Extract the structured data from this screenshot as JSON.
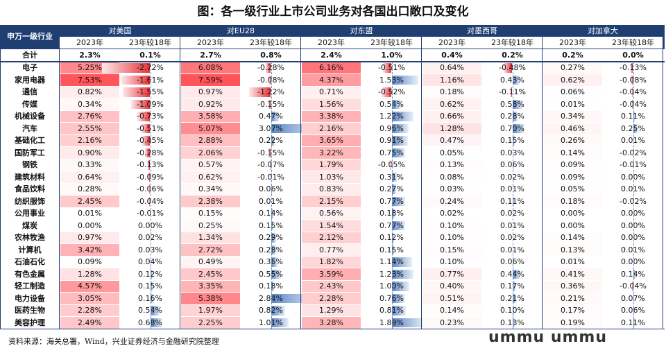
{
  "title": "图：各一级行业上市公司业务对各国出口敞口及变化",
  "footer": "资料来源：海关总署，Wind，兴业证券经济与金融研究院整理",
  "watermark": "ummu ummu",
  "colors": {
    "header": "#1f3f73",
    "positive_bar": "#5d86c4",
    "negative_bar": "#e8333a"
  },
  "chart_data": {
    "type": "table",
    "corner_label": "申万一级行业",
    "groups": [
      "对美国",
      "对EU28",
      "对东盟",
      "对墨西哥",
      "对加拿大"
    ],
    "subheaders": [
      "2023年",
      "23年较18年"
    ],
    "subheaders_us": [
      "2023年",
      "23年较18年"
    ],
    "total": {
      "label": "合计",
      "values": [
        [
          "2.3%",
          "0.1%"
        ],
        [
          "2.7%",
          "0.8%"
        ],
        [
          "2.4%",
          "1.0%"
        ],
        [
          "0.4%",
          "0.2%"
        ],
        [
          "0.2%",
          "0.0%"
        ]
      ]
    },
    "rows": [
      {
        "label": "电子",
        "values": [
          [
            5.25,
            -2.72
          ],
          [
            6.08,
            -0.28
          ],
          [
            6.16,
            -0.51
          ],
          [
            0.64,
            -0.48
          ],
          [
            0.27,
            -0.13
          ]
        ]
      },
      {
        "label": "家用电器",
        "values": [
          [
            7.53,
            -1.61
          ],
          [
            7.59,
            -0.08
          ],
          [
            4.37,
            1.53
          ],
          [
            1.16,
            0.43
          ],
          [
            0.62,
            -0.08
          ]
        ]
      },
      {
        "label": "通信",
        "values": [
          [
            0.82,
            -1.55
          ],
          [
            0.97,
            -1.22
          ],
          [
            0.71,
            -0.52
          ],
          [
            0.18,
            -0.11
          ],
          [
            0.06,
            -0.04
          ]
        ]
      },
      {
        "label": "传媒",
        "values": [
          [
            0.34,
            -1.09
          ],
          [
            0.92,
            -0.15
          ],
          [
            1.56,
            0.54
          ],
          [
            0.62,
            0.58
          ],
          [
            0.01,
            -0.04
          ]
        ]
      },
      {
        "label": "机械设备",
        "values": [
          [
            2.76,
            -0.73
          ],
          [
            3.58,
            0.47
          ],
          [
            3.38,
            1.22
          ],
          [
            0.66,
            0.28
          ],
          [
            0.34,
            0.11
          ]
        ]
      },
      {
        "label": "汽车",
        "values": [
          [
            2.55,
            -0.51
          ],
          [
            5.07,
            3.07
          ],
          [
            2.16,
            0.96
          ],
          [
            1.28,
            0.7
          ],
          [
            0.46,
            0.25
          ]
        ]
      },
      {
        "label": "基础化工",
        "values": [
          [
            2.16,
            -0.45
          ],
          [
            2.88,
            0.22
          ],
          [
            3.65,
            0.91
          ],
          [
            0.47,
            0.15
          ],
          [
            0.26,
            0.01
          ]
        ]
      },
      {
        "label": "国防军工",
        "values": [
          [
            0.9,
            -0.28
          ],
          [
            2.06,
            -0.15
          ],
          [
            3.22,
            0.75
          ],
          [
            0.05,
            0.03
          ],
          [
            0.14,
            -0.02
          ]
        ]
      },
      {
        "label": "钢铁",
        "values": [
          [
            0.33,
            -0.13
          ],
          [
            0.57,
            -0.07
          ],
          [
            1.79,
            -0.05
          ],
          [
            0.13,
            0.06
          ],
          [
            0.09,
            -0.01
          ]
        ]
      },
      {
        "label": "建筑材料",
        "values": [
          [
            0.64,
            -0.09
          ],
          [
            0.62,
            -0.01
          ],
          [
            1.03,
            0.31
          ],
          [
            0.08,
            0.02
          ],
          [
            0.09,
            0.0
          ]
        ]
      },
      {
        "label": "食品饮料",
        "values": [
          [
            0.28,
            -0.06
          ],
          [
            0.34,
            0.06
          ],
          [
            0.83,
            0.27
          ],
          [
            0.03,
            0.01
          ],
          [
            0.05,
            0.01
          ]
        ]
      },
      {
        "label": "纺织服饰",
        "values": [
          [
            2.45,
            -0.04
          ],
          [
            2.38,
            0.01
          ],
          [
            2.15,
            0.77
          ],
          [
            0.24,
            0.11
          ],
          [
            0.18,
            -0.02
          ]
        ]
      },
      {
        "label": "公用事业",
        "values": [
          [
            0.01,
            -0.01
          ],
          [
            0.15,
            0.14
          ],
          [
            0.56,
            0.18
          ],
          [
            0.02,
            0.02
          ],
          [
            0.0,
            0.0
          ]
        ]
      },
      {
        "label": "煤炭",
        "values": [
          [
            0.0,
            0.0
          ],
          [
            0.25,
            0.15
          ],
          [
            1.54,
            0.77
          ],
          [
            0.1,
            0.01
          ],
          [
            0.0,
            0.0
          ]
        ]
      },
      {
        "label": "农林牧渔",
        "values": [
          [
            0.97,
            0.02
          ],
          [
            1.34,
            0.29
          ],
          [
            2.12,
            0.12
          ],
          [
            0.1,
            0.02
          ],
          [
            0.14,
            0.0
          ]
        ]
      },
      {
        "label": "计算机",
        "values": [
          [
            3.42,
            0.03
          ],
          [
            2.72,
            0.28
          ],
          [
            0.77,
            0.15
          ],
          [
            0.15,
            0.01
          ],
          [
            0.13,
            0.01
          ]
        ]
      },
      {
        "label": "石油石化",
        "values": [
          [
            0.09,
            0.04
          ],
          [
            0.49,
            0.36
          ],
          [
            1.82,
            1.14
          ],
          [
            0.1,
            0.06
          ],
          [
            0.01,
            0.0
          ]
        ]
      },
      {
        "label": "有色金属",
        "values": [
          [
            1.28,
            0.12
          ],
          [
            2.45,
            0.55
          ],
          [
            3.59,
            1.23
          ],
          [
            0.77,
            0.44
          ],
          [
            0.41,
            0.14
          ]
        ]
      },
      {
        "label": "轻工制造",
        "values": [
          [
            4.57,
            0.15
          ],
          [
            3.35,
            0.18
          ],
          [
            2.43,
            1.0
          ],
          [
            0.4,
            0.17
          ],
          [
            0.36,
            -0.04
          ]
        ]
      },
      {
        "label": "电力设备",
        "values": [
          [
            3.05,
            0.16
          ],
          [
            5.38,
            2.84
          ],
          [
            2.28,
            0.76
          ],
          [
            0.51,
            0.21
          ],
          [
            0.21,
            0.07
          ]
        ]
      },
      {
        "label": "医药生物",
        "values": [
          [
            2.28,
            0.54
          ],
          [
            1.97,
            0.82
          ],
          [
            1.29,
            0.81
          ],
          [
            0.14,
            0.1
          ],
          [
            0.17,
            0.06
          ]
        ]
      },
      {
        "label": "美容护理",
        "values": [
          [
            2.49,
            0.68
          ],
          [
            2.25,
            1.01
          ],
          [
            3.28,
            1.89
          ],
          [
            0.23,
            0.13
          ],
          [
            0.19,
            0.11
          ]
        ]
      }
    ]
  }
}
